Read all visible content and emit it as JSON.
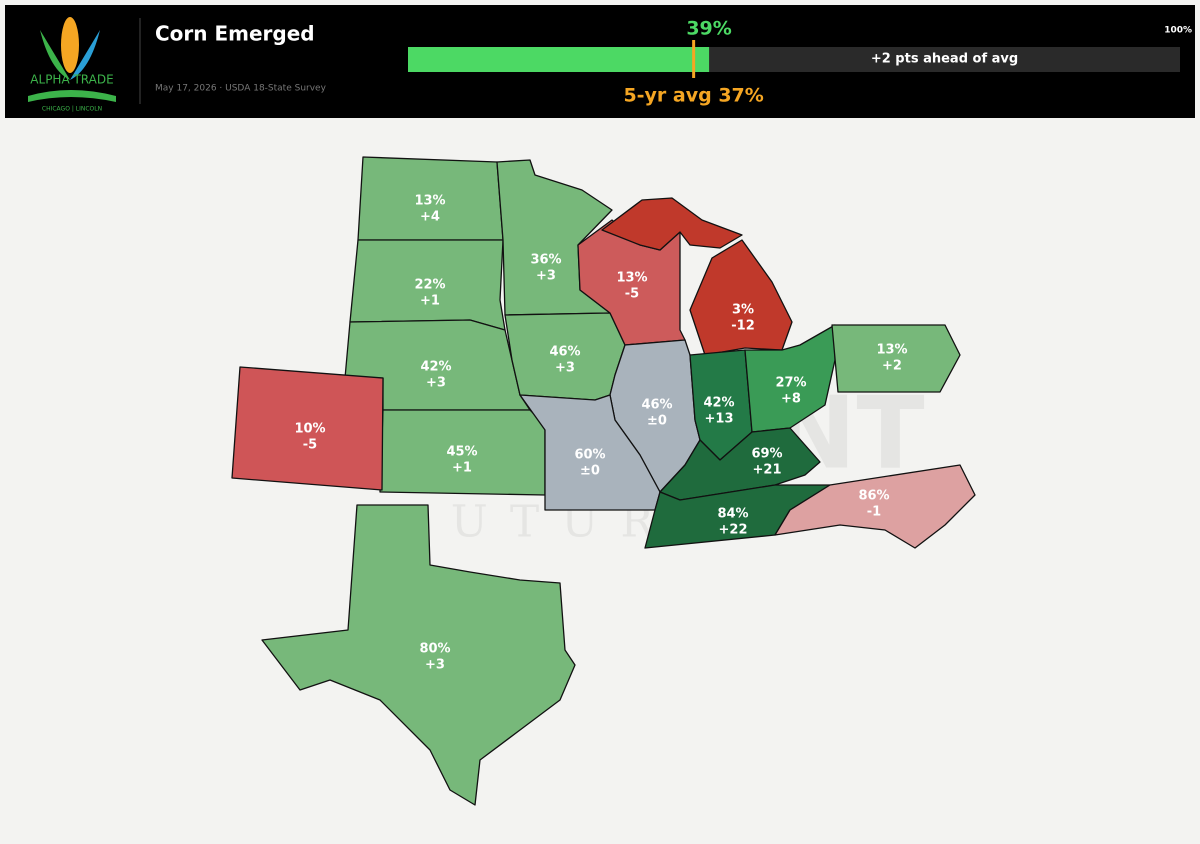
{
  "header": {
    "logo_name": "ALPHA TRADE",
    "logo_tagline": "CHICAGO | LINCOLN",
    "title": "Corn Emerged",
    "subtitle": "May 17, 2026  ·  USDA 18-State Survey"
  },
  "progress": {
    "value": 39,
    "value_label": "39%",
    "avg": 37,
    "avg_label": "5-yr avg 37%",
    "max": 100,
    "max_label": "100%",
    "note": "+2 pts ahead of avg",
    "fill_color": "#4cd964",
    "avg_color": "#f5a623"
  },
  "watermark": {
    "line1": "LAKEFRONT",
    "line2": "FUTURES"
  },
  "states": [
    {
      "pct": "13%",
      "change": "+4",
      "color": "#77b87a"
    },
    {
      "pct": "22%",
      "change": "+1",
      "color": "#77b87a"
    },
    {
      "pct": "42%",
      "change": "+3",
      "color": "#77b87a"
    },
    {
      "pct": "45%",
      "change": "+1",
      "color": "#77b87a"
    },
    {
      "pct": "10%",
      "change": "-5",
      "color": "#cf5557"
    },
    {
      "pct": "36%",
      "change": "+3",
      "color": "#77b87a"
    },
    {
      "pct": "46%",
      "change": "+3",
      "color": "#77b87a"
    },
    {
      "pct": "13%",
      "change": "-5",
      "color": "#cd5b5b"
    },
    {
      "pct": "3%",
      "change": "-12",
      "color": "#c0392b"
    },
    {
      "pct": "46%",
      "change": "±0",
      "color": "#a9b3bc"
    },
    {
      "pct": "60%",
      "change": "±0",
      "color": "#a9b3bc"
    },
    {
      "pct": "42%",
      "change": "+13",
      "color": "#237a47"
    },
    {
      "pct": "27%",
      "change": "+8",
      "color": "#3a9b56"
    },
    {
      "pct": "13%",
      "change": "+2",
      "color": "#77b87a"
    },
    {
      "pct": "69%",
      "change": "+21",
      "color": "#1f6b3d"
    },
    {
      "pct": "84%",
      "change": "+22",
      "color": "#1f6b3d"
    },
    {
      "pct": "86%",
      "change": "-1",
      "color": "#dda1a1"
    },
    {
      "pct": "80%",
      "change": "+3",
      "color": "#77b87a"
    }
  ]
}
